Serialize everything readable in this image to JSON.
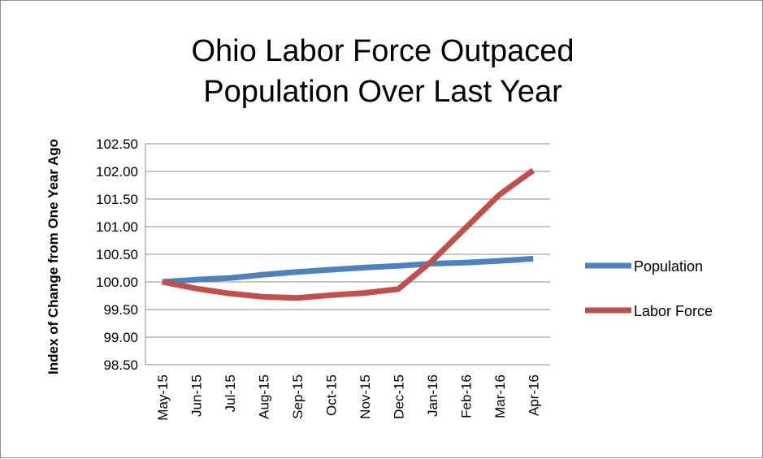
{
  "chart_data": {
    "type": "line",
    "title_lines": [
      "Ohio Labor Force Outpaced",
      "Population Over Last Year"
    ],
    "ylabel": "Index of Change from One Year Ago",
    "xlabel": "",
    "categories": [
      "May-15",
      "Jun-15",
      "Jul-15",
      "Aug-15",
      "Sep-15",
      "Oct-15",
      "Nov-15",
      "Dec-15",
      "Jan-16",
      "Feb-16",
      "Mar-16",
      "Apr-16"
    ],
    "ylim": [
      98.5,
      102.5
    ],
    "yticks": [
      "102.50",
      "102.00",
      "101.50",
      "101.00",
      "100.50",
      "100.00",
      "99.50",
      "99.00",
      "98.50"
    ],
    "grid": true,
    "legend_position": "right",
    "series": [
      {
        "name": "Population",
        "color": "#4f81bd",
        "values": [
          100.0,
          100.04,
          100.07,
          100.13,
          100.18,
          100.22,
          100.26,
          100.29,
          100.33,
          100.35,
          100.38,
          100.42
        ]
      },
      {
        "name": "Labor Force",
        "color": "#c0504d",
        "values": [
          100.0,
          99.88,
          99.79,
          99.73,
          99.71,
          99.76,
          99.8,
          99.87,
          100.38,
          100.98,
          101.58,
          102.02
        ]
      }
    ]
  }
}
